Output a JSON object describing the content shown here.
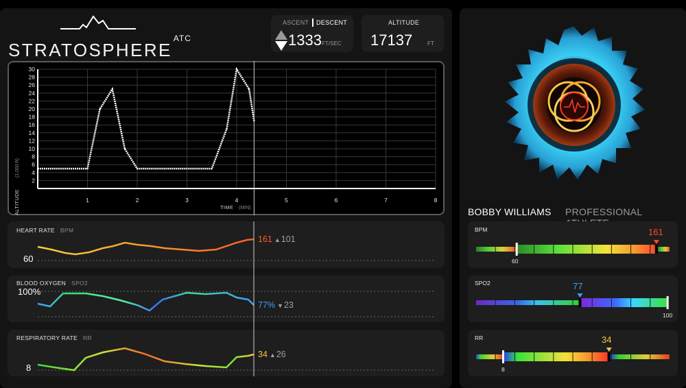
{
  "brand": {
    "name": "STRATOSPHERE",
    "suffix": "ATC"
  },
  "ascent_box": {
    "ascent_label": "ASCENT",
    "descent_label": "DESCENT",
    "value": "1333",
    "unit": "FT/SEC",
    "indicator_icon": "up-down-triangle-icon"
  },
  "altitude_box": {
    "label": "ALTITUDE",
    "value": "17137",
    "unit": "FT"
  },
  "altitude_chart": {
    "chart_data": {
      "type": "line",
      "ylabel": "ALTITUDE",
      "ylabel_unit": "(1,000 ft)",
      "xlabel": "TIME",
      "xlabel_unit": "(MIN)",
      "xlim": [
        0,
        8
      ],
      "ylim": [
        0,
        30
      ],
      "x_ticks": [
        "1",
        "2",
        "3",
        "4",
        "5",
        "6",
        "7",
        "8"
      ],
      "y_ticks": [
        "2",
        "4",
        "6",
        "8",
        "10",
        "12",
        "14",
        "16",
        "18",
        "20",
        "22",
        "24",
        "26",
        "28",
        "30"
      ],
      "points": [
        [
          0,
          5
        ],
        [
          1,
          5
        ],
        [
          1.25,
          20
        ],
        [
          1.5,
          25
        ],
        [
          1.75,
          10
        ],
        [
          2,
          5
        ],
        [
          3.5,
          5
        ],
        [
          3.8,
          15
        ],
        [
          4,
          30
        ],
        [
          4.25,
          25
        ],
        [
          4.35,
          17
        ]
      ],
      "cursor_x": 4.35,
      "grid": true
    }
  },
  "vitals": {
    "heart_rate": {
      "label": "HEART RATE",
      "unit": "BPM",
      "baseline": "60",
      "current": "161",
      "delta": "101",
      "delta_dir": "up"
    },
    "blood_oxygen": {
      "label": "BLOOD OXYGEN",
      "unit": "SPO2",
      "baseline": "100%",
      "current": "77%",
      "delta": "23",
      "delta_dir": "down"
    },
    "respiratory_rate": {
      "label": "RESPIRATORY RATE",
      "unit": "RR",
      "baseline": "8",
      "current": "34",
      "delta": "26",
      "delta_dir": "up"
    }
  },
  "profile": {
    "name": "BOBBY WILLIAMS",
    "role": "PROFESSIONAL ATHLETE",
    "emblem_icon": "heartbeat-ring-icon"
  },
  "gauges": {
    "bpm": {
      "label": "BPM",
      "value": "161",
      "min_label": "60",
      "value_fraction": 0.925,
      "min_fraction": 0.21,
      "color": "#ff4a2a"
    },
    "spo2": {
      "label": "SPO2",
      "value": "77",
      "max_label": "100",
      "value_fraction": 0.53,
      "max_fraction": 0.99,
      "color": "#3aa0ff"
    },
    "rr": {
      "label": "RR",
      "value": "34",
      "min_label": "8",
      "value_fraction": 0.68,
      "min_fraction": 0.14,
      "color": "#f5c542"
    }
  },
  "colors": {
    "accent_red": "#ff4a2a",
    "accent_blue": "#3aa0ff",
    "accent_yellow": "#f5c542"
  }
}
